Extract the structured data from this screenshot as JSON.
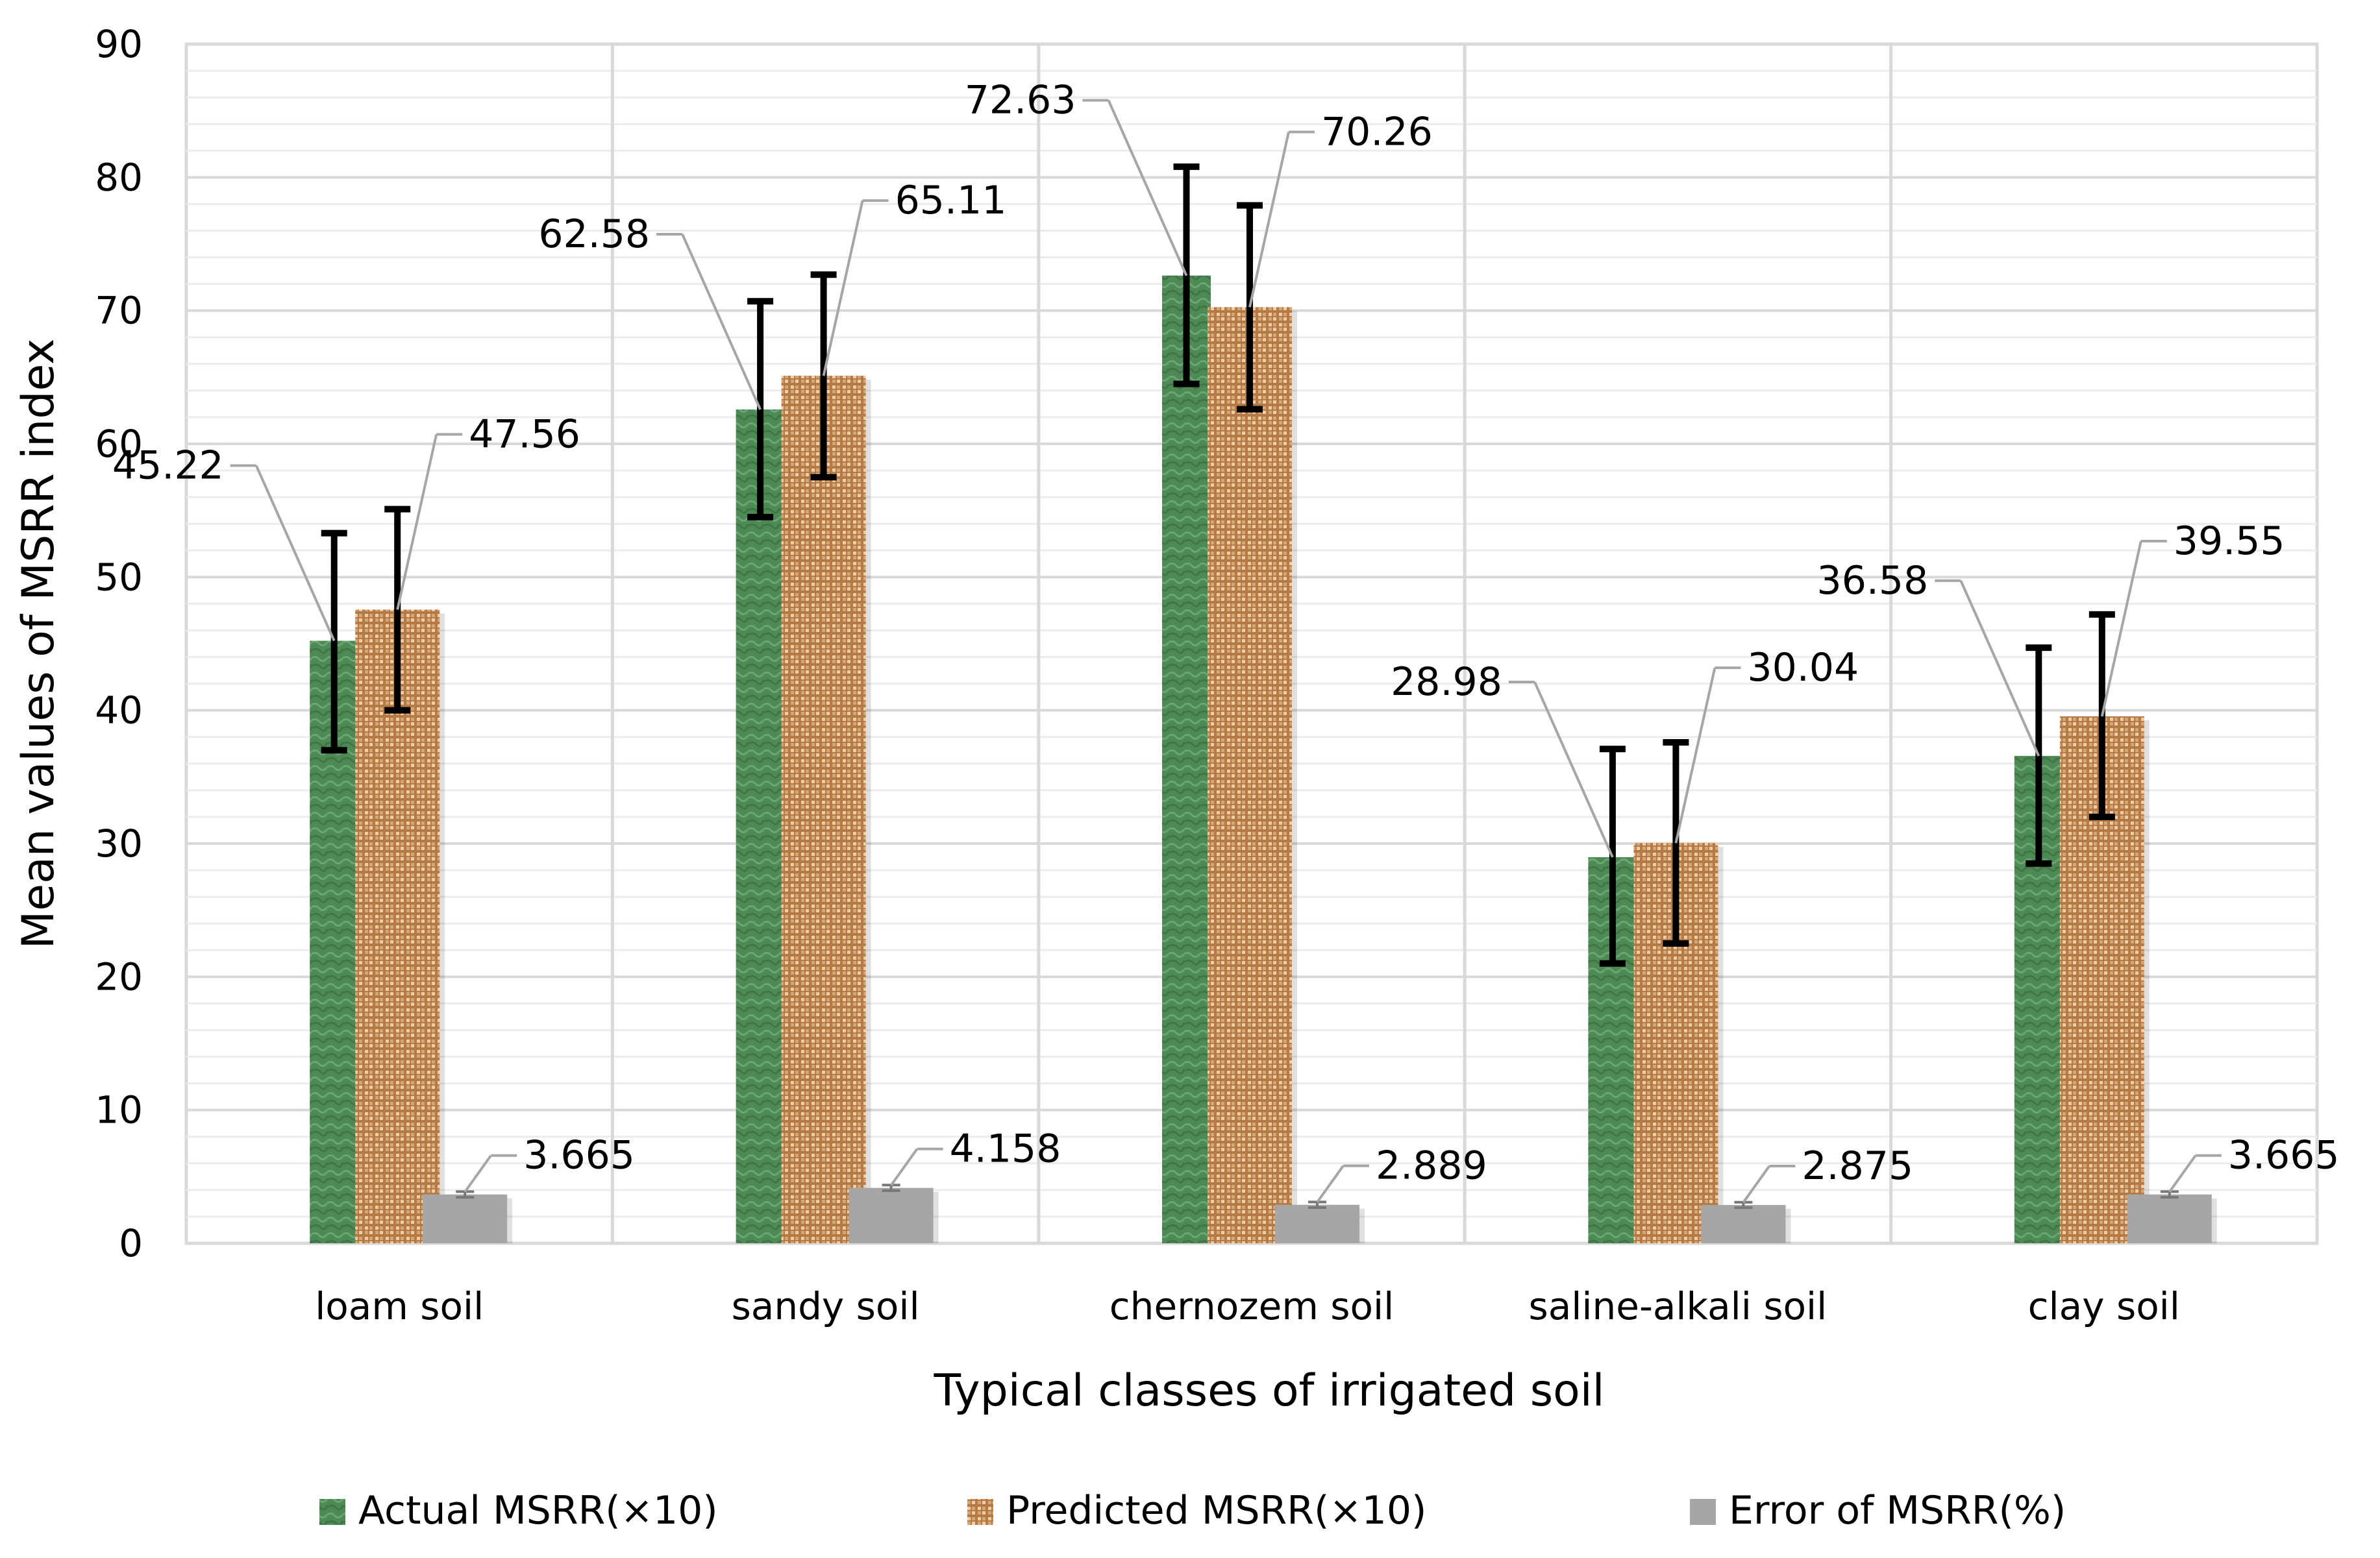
{
  "chart_data": {
    "type": "bar",
    "title": "",
    "xlabel": "Typical classes of irrigated soil",
    "ylabel": "Mean values of MSRR index",
    "ylim": [
      0,
      90
    ],
    "ytick_step": 10,
    "grid": true,
    "legend_position": "bottom",
    "categories": [
      "loam soil",
      "sandy soil",
      "chernozem soil",
      "saline-alkali soil",
      "clay soil"
    ],
    "series": [
      {
        "name": "Actual MSRR(×10)",
        "color": "#4e8a55",
        "values": [
          45.22,
          62.58,
          72.63,
          28.98,
          36.58
        ],
        "labels": [
          "45.22",
          "62.58",
          "72.63",
          "28.98",
          "36.58"
        ],
        "error_low": [
          37.0,
          54.5,
          64.5,
          21.0,
          28.5
        ],
        "error_high": [
          53.3,
          70.7,
          80.8,
          37.1,
          44.7
        ]
      },
      {
        "name": "Predicted MSRR(×10)",
        "color": "#c79263",
        "values": [
          47.56,
          65.11,
          70.26,
          30.04,
          39.55
        ],
        "labels": [
          "47.56",
          "65.11",
          "70.26",
          "30.04",
          "39.55"
        ],
        "error_low": [
          40.0,
          57.5,
          62.6,
          22.5,
          32.0
        ],
        "error_high": [
          55.1,
          72.7,
          77.9,
          37.6,
          47.2
        ]
      },
      {
        "name": "Error of MSRR(%)",
        "color": "#a6a6a6",
        "values": [
          3.665,
          4.158,
          2.889,
          2.875,
          3.665
        ],
        "labels": [
          "3.665",
          "4.158",
          "2.889",
          "2.875",
          "3.665"
        ],
        "error_low": [
          3.45,
          3.95,
          2.68,
          2.67,
          3.45
        ],
        "error_high": [
          3.88,
          4.37,
          3.1,
          3.08,
          3.88
        ]
      }
    ]
  },
  "colors": {
    "actual": "#4e8a55",
    "predicted": "#c79263",
    "error": "#a6a6a6",
    "grid": "#d9d9d9",
    "leader": "#a6a6a6"
  }
}
